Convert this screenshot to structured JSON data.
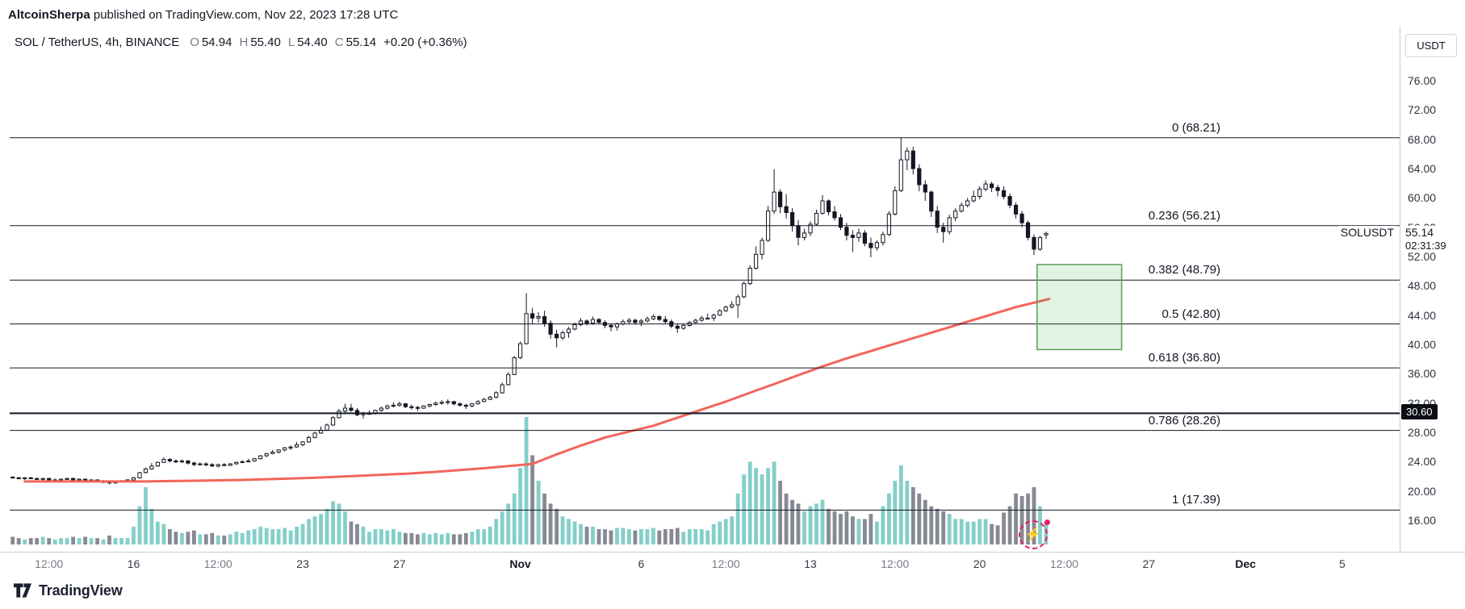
{
  "attribution": {
    "author": "AltcoinSherpa",
    "rest": " published on TradingView.com, Nov 22, 2023 17:28 UTC"
  },
  "legend": {
    "title": "SOL / TetherUS, 4h, BINANCE",
    "o_label": "O",
    "o": "54.94",
    "h_label": "H",
    "h": "55.40",
    "l_label": "L",
    "l": "54.40",
    "c_label": "C",
    "c": "55.14",
    "change": "+0.20 (+0.36%)"
  },
  "price_axis": {
    "currency": "USDT",
    "labels": [
      "76.00",
      "72.00",
      "68.00",
      "64.00",
      "60.00",
      "56.00",
      "52.00",
      "48.00",
      "44.00",
      "40.00",
      "36.00",
      "32.00",
      "28.00",
      "24.00",
      "20.00",
      "16.00"
    ],
    "symbol_label": "SOLUSDT",
    "last_price": "55.14",
    "countdown": "02:31:39"
  },
  "time_axis": {
    "labels": [
      {
        "text": "12:00",
        "i": 6,
        "style": "session"
      },
      {
        "text": "16",
        "i": 20,
        "style": ""
      },
      {
        "text": "12:00",
        "i": 34,
        "style": "session"
      },
      {
        "text": "23",
        "i": 48,
        "style": ""
      },
      {
        "text": "27",
        "i": 64,
        "style": ""
      },
      {
        "text": "Nov",
        "i": 84,
        "style": "month"
      },
      {
        "text": "6",
        "i": 104,
        "style": ""
      },
      {
        "text": "12:00",
        "i": 118,
        "style": "session"
      },
      {
        "text": "13",
        "i": 132,
        "style": ""
      },
      {
        "text": "12:00",
        "i": 146,
        "style": "session"
      },
      {
        "text": "20",
        "i": 160,
        "style": ""
      },
      {
        "text": "12:00",
        "i": 174,
        "style": "session"
      },
      {
        "text": "27",
        "i": 188,
        "style": ""
      },
      {
        "text": "Dec",
        "i": 204,
        "style": "month"
      },
      {
        "text": "5",
        "i": 220,
        "style": ""
      }
    ]
  },
  "footer": {
    "brand": "TradingView"
  },
  "icons": {
    "boost": "⚡"
  },
  "colors": {
    "up_candle": "#ffffff",
    "down_candle": "#131722",
    "wick": "#131722",
    "volume_up": "#84cfc9",
    "volume_down": "#878a93",
    "ema": "#f2655a",
    "level_line": "#131722",
    "box_fill": "rgba(76,175,80,0.16)",
    "box_border": "#58a05c",
    "accent_pink": "#e91e63"
  },
  "chart_data": {
    "type": "candlestick",
    "title": "SOL / TetherUS, 4h, BINANCE",
    "symbol": "SOLUSDT",
    "timeframe": "4h",
    "exchange": "BINANCE",
    "last_close": 55.14,
    "y_range": {
      "top_price": 76,
      "bottom_price": 16
    },
    "axis_bars": 230,
    "bars_per_day": 4,
    "volume_scale": "relative (0-100)",
    "fib_levels": [
      {
        "ratio": "0",
        "price": 68.21,
        "label": "0 (68.21)"
      },
      {
        "ratio": "0.236",
        "price": 56.21,
        "label": "0.236 (56.21)"
      },
      {
        "ratio": "0.382",
        "price": 48.79,
        "label": "0.382 (48.79)"
      },
      {
        "ratio": "0.5",
        "price": 42.8,
        "label": "0.5 (42.80)"
      },
      {
        "ratio": "0.618",
        "price": 36.8,
        "label": "0.618 (36.80)"
      },
      {
        "ratio": "0.786",
        "price": 28.26,
        "label": "0.786 (28.26)"
      },
      {
        "ratio": "1",
        "price": 17.39,
        "label": "1 (17.39)"
      }
    ],
    "horizontal_line": {
      "price": 30.6,
      "label": "30.60"
    },
    "target_box": {
      "price_top": 50.9,
      "price_bottom": 39.3,
      "bar_start": 169.5,
      "bar_end": 183.5
    },
    "ema": {
      "name": "moving average",
      "values": [
        21.3,
        21.3,
        21.3,
        21.3,
        21.3,
        21.3,
        21.35,
        21.4,
        21.45,
        21.5,
        21.6,
        21.7,
        21.8,
        21.95,
        22.1,
        22.25,
        22.4,
        22.6,
        22.85,
        23.1,
        23.4,
        23.7,
        25.0,
        26.2,
        27.3,
        28.1,
        28.9,
        30.0,
        31.1,
        32.2,
        33.4,
        34.6,
        35.8,
        37.0,
        38.1,
        39.1,
        40.1,
        41.1,
        42.1,
        43.1,
        44.1,
        45.1,
        45.9
      ],
      "end_value": 46.2
    },
    "candles": [
      [
        21.9,
        22.0,
        21.7,
        21.8,
        6
      ],
      [
        21.8,
        21.9,
        21.6,
        21.7,
        5
      ],
      [
        21.7,
        21.9,
        21.5,
        21.8,
        4
      ],
      [
        21.8,
        21.9,
        21.6,
        21.7,
        5
      ],
      [
        21.7,
        21.8,
        21.5,
        21.6,
        5
      ],
      [
        21.6,
        21.8,
        21.4,
        21.7,
        6
      ],
      [
        21.7,
        21.8,
        21.4,
        21.5,
        5
      ],
      [
        21.5,
        21.7,
        21.3,
        21.5,
        4
      ],
      [
        21.5,
        21.7,
        21.4,
        21.6,
        5
      ],
      [
        21.6,
        21.8,
        21.5,
        21.7,
        5
      ],
      [
        21.7,
        21.8,
        21.4,
        21.5,
        6
      ],
      [
        21.5,
        21.7,
        21.4,
        21.6,
        5
      ],
      [
        21.6,
        21.7,
        21.3,
        21.4,
        6
      ],
      [
        21.4,
        21.6,
        21.2,
        21.5,
        5
      ],
      [
        21.5,
        21.6,
        21.2,
        21.3,
        5
      ],
      [
        21.3,
        21.5,
        21.1,
        21.3,
        4
      ],
      [
        21.3,
        21.4,
        20.9,
        21.1,
        7
      ],
      [
        21.1,
        21.4,
        21.0,
        21.3,
        5
      ],
      [
        21.3,
        21.5,
        21.2,
        21.4,
        5
      ],
      [
        21.4,
        21.6,
        21.3,
        21.5,
        5
      ],
      [
        21.5,
        21.9,
        21.4,
        21.8,
        14
      ],
      [
        21.8,
        22.6,
        21.7,
        22.5,
        30
      ],
      [
        22.5,
        23.2,
        22.4,
        23.0,
        45
      ],
      [
        23.0,
        23.8,
        22.9,
        23.4,
        28
      ],
      [
        23.4,
        24.0,
        23.3,
        23.9,
        18
      ],
      [
        23.9,
        24.6,
        23.8,
        24.3,
        16
      ],
      [
        24.3,
        24.5,
        23.9,
        24.1,
        12
      ],
      [
        24.1,
        24.3,
        23.8,
        24.0,
        10
      ],
      [
        24.0,
        24.3,
        23.8,
        24.1,
        9
      ],
      [
        24.1,
        24.2,
        23.6,
        23.8,
        10
      ],
      [
        23.8,
        24.0,
        23.4,
        23.6,
        11
      ],
      [
        23.6,
        23.9,
        23.5,
        23.7,
        8
      ],
      [
        23.7,
        23.9,
        23.4,
        23.6,
        8
      ],
      [
        23.6,
        23.8,
        23.3,
        23.4,
        9
      ],
      [
        23.4,
        23.7,
        23.2,
        23.6,
        7
      ],
      [
        23.6,
        23.8,
        23.4,
        23.5,
        7
      ],
      [
        23.5,
        23.8,
        23.4,
        23.7,
        8
      ],
      [
        23.7,
        24.0,
        23.6,
        23.9,
        10
      ],
      [
        23.9,
        24.2,
        23.8,
        24.0,
        9
      ],
      [
        24.0,
        24.4,
        23.9,
        24.1,
        11
      ],
      [
        24.1,
        24.5,
        24.0,
        24.4,
        12
      ],
      [
        24.4,
        24.9,
        24.3,
        24.8,
        14
      ],
      [
        24.8,
        25.2,
        24.6,
        25.1,
        13
      ],
      [
        25.1,
        25.6,
        25.0,
        25.3,
        12
      ],
      [
        25.3,
        25.7,
        25.1,
        25.6,
        12
      ],
      [
        25.6,
        26.0,
        25.4,
        25.9,
        13
      ],
      [
        25.9,
        26.2,
        25.6,
        26.0,
        11
      ],
      [
        26.0,
        26.7,
        25.9,
        26.3,
        14
      ],
      [
        26.3,
        26.8,
        26.1,
        26.7,
        16
      ],
      [
        26.7,
        27.5,
        26.6,
        27.3,
        20
      ],
      [
        27.3,
        28.1,
        27.2,
        27.9,
        22
      ],
      [
        27.9,
        28.8,
        27.8,
        28.3,
        24
      ],
      [
        28.3,
        29.2,
        28.2,
        29.0,
        28
      ],
      [
        29.0,
        30.2,
        28.9,
        30.0,
        34
      ],
      [
        30.0,
        31.2,
        29.9,
        30.9,
        32
      ],
      [
        30.9,
        31.9,
        30.7,
        31.3,
        26
      ],
      [
        31.3,
        31.9,
        30.8,
        31.0,
        18
      ],
      [
        31.0,
        31.3,
        30.2,
        30.4,
        16
      ],
      [
        30.4,
        30.8,
        29.9,
        30.6,
        14
      ],
      [
        30.6,
        31.0,
        30.4,
        30.6,
        10
      ],
      [
        30.6,
        31.1,
        30.4,
        31.0,
        12
      ],
      [
        31.0,
        31.5,
        30.8,
        31.3,
        12
      ],
      [
        31.3,
        31.8,
        31.1,
        31.6,
        11
      ],
      [
        31.6,
        32.1,
        31.4,
        31.7,
        12
      ],
      [
        31.7,
        32.2,
        31.5,
        31.9,
        10
      ],
      [
        31.9,
        32.0,
        31.3,
        31.5,
        9
      ],
      [
        31.5,
        31.8,
        31.1,
        31.4,
        9
      ],
      [
        31.4,
        31.6,
        30.9,
        31.3,
        8
      ],
      [
        31.3,
        31.7,
        31.2,
        31.6,
        9
      ],
      [
        31.6,
        31.9,
        31.4,
        31.8,
        8
      ],
      [
        31.8,
        32.2,
        31.6,
        32.0,
        9
      ],
      [
        32.0,
        32.4,
        31.8,
        32.1,
        8
      ],
      [
        32.1,
        32.5,
        31.8,
        32.2,
        9
      ],
      [
        32.2,
        32.3,
        31.7,
        31.9,
        8
      ],
      [
        31.9,
        32.1,
        31.5,
        31.7,
        8
      ],
      [
        31.7,
        31.9,
        31.2,
        31.6,
        9
      ],
      [
        31.6,
        32.0,
        31.4,
        31.9,
        10
      ],
      [
        31.9,
        32.4,
        31.8,
        32.2,
        12
      ],
      [
        32.2,
        32.7,
        32.1,
        32.5,
        12
      ],
      [
        32.5,
        33.0,
        32.4,
        32.8,
        14
      ],
      [
        32.8,
        33.6,
        32.6,
        33.4,
        20
      ],
      [
        33.4,
        34.8,
        33.3,
        34.5,
        26
      ],
      [
        34.5,
        36.2,
        34.4,
        35.9,
        32
      ],
      [
        35.9,
        38.4,
        35.8,
        38.2,
        40
      ],
      [
        38.2,
        40.4,
        38.0,
        40.1,
        60
      ],
      [
        40.1,
        47.0,
        40.0,
        44.2,
        100
      ],
      [
        44.2,
        45.0,
        42.8,
        43.6,
        70
      ],
      [
        43.6,
        44.4,
        43.0,
        43.8,
        50
      ],
      [
        43.8,
        44.6,
        42.4,
        42.9,
        40
      ],
      [
        42.9,
        43.3,
        40.8,
        41.4,
        32
      ],
      [
        41.4,
        42.0,
        39.6,
        40.9,
        28
      ],
      [
        40.9,
        41.9,
        40.6,
        41.6,
        22
      ],
      [
        41.6,
        42.4,
        40.9,
        42.1,
        20
      ],
      [
        42.1,
        43.0,
        41.9,
        42.7,
        18
      ],
      [
        42.7,
        43.6,
        42.5,
        43.2,
        16
      ],
      [
        43.2,
        43.4,
        42.6,
        42.9,
        14
      ],
      [
        42.9,
        43.8,
        42.7,
        43.4,
        14
      ],
      [
        43.4,
        43.6,
        42.8,
        43.0,
        12
      ],
      [
        43.0,
        43.3,
        42.2,
        42.6,
        12
      ],
      [
        42.6,
        42.9,
        41.8,
        42.4,
        11
      ],
      [
        42.4,
        43.0,
        41.9,
        42.8,
        13
      ],
      [
        42.8,
        43.4,
        42.6,
        43.1,
        13
      ],
      [
        43.1,
        43.6,
        42.8,
        43.3,
        12
      ],
      [
        43.3,
        43.5,
        42.7,
        43.0,
        11
      ],
      [
        43.0,
        43.5,
        42.5,
        43.2,
        12
      ],
      [
        43.2,
        43.8,
        43.0,
        43.5,
        12
      ],
      [
        43.5,
        44.1,
        43.3,
        43.8,
        13
      ],
      [
        43.8,
        44.0,
        43.2,
        43.4,
        11
      ],
      [
        43.4,
        43.9,
        42.8,
        43.1,
        12
      ],
      [
        43.1,
        43.4,
        42.2,
        42.5,
        12
      ],
      [
        42.5,
        42.9,
        41.6,
        42.2,
        13
      ],
      [
        42.2,
        42.8,
        42.0,
        42.6,
        10
      ],
      [
        42.6,
        43.2,
        42.4,
        43.0,
        12
      ],
      [
        43.0,
        43.5,
        42.8,
        43.3,
        12
      ],
      [
        43.3,
        43.9,
        43.1,
        43.6,
        12
      ],
      [
        43.6,
        44.2,
        43.4,
        43.6,
        11
      ],
      [
        43.6,
        44.2,
        43.2,
        44.0,
        16
      ],
      [
        44.0,
        44.8,
        43.9,
        44.6,
        18
      ],
      [
        44.6,
        45.3,
        44.4,
        45.1,
        20
      ],
      [
        45.1,
        45.9,
        44.9,
        45.4,
        22
      ],
      [
        45.4,
        46.8,
        43.6,
        46.5,
        40
      ],
      [
        46.5,
        48.6,
        46.3,
        48.3,
        55
      ],
      [
        48.3,
        50.8,
        48.1,
        50.4,
        65
      ],
      [
        50.4,
        53.4,
        50.2,
        52.3,
        60
      ],
      [
        52.3,
        54.6,
        51.6,
        54.2,
        55
      ],
      [
        54.2,
        58.9,
        54.0,
        58.2,
        60
      ],
      [
        58.2,
        63.9,
        57.8,
        60.8,
        65
      ],
      [
        60.8,
        61.2,
        57.9,
        58.8,
        50
      ],
      [
        58.8,
        60.5,
        57.2,
        58.0,
        40
      ],
      [
        58.0,
        58.6,
        55.4,
        56.2,
        35
      ],
      [
        56.2,
        57.0,
        53.5,
        54.6,
        32
      ],
      [
        54.6,
        55.8,
        54.2,
        55.2,
        26
      ],
      [
        55.2,
        56.8,
        54.8,
        56.4,
        30
      ],
      [
        56.4,
        58.4,
        56.2,
        57.9,
        32
      ],
      [
        57.9,
        60.4,
        57.7,
        59.6,
        35
      ],
      [
        59.6,
        59.8,
        57.6,
        58.1,
        28
      ],
      [
        58.1,
        58.9,
        56.9,
        57.3,
        26
      ],
      [
        57.3,
        57.8,
        55.6,
        56.0,
        24
      ],
      [
        56.0,
        56.6,
        54.2,
        54.9,
        26
      ],
      [
        54.9,
        55.6,
        52.6,
        54.6,
        22
      ],
      [
        54.6,
        55.8,
        54.0,
        55.2,
        20
      ],
      [
        55.2,
        55.6,
        53.4,
        53.8,
        20
      ],
      [
        53.8,
        54.6,
        51.9,
        53.2,
        24
      ],
      [
        53.2,
        54.2,
        52.8,
        53.9,
        18
      ],
      [
        53.9,
        55.4,
        53.5,
        55.0,
        30
      ],
      [
        55.0,
        58.2,
        54.8,
        57.8,
        40
      ],
      [
        57.8,
        61.6,
        57.6,
        61.0,
        50
      ],
      [
        61.0,
        68.21,
        60.8,
        65.2,
        62
      ],
      [
        65.2,
        66.9,
        63.8,
        66.4,
        50
      ],
      [
        66.4,
        67.0,
        63.2,
        64.0,
        45
      ],
      [
        64.0,
        64.6,
        60.9,
        61.8,
        40
      ],
      [
        61.8,
        62.4,
        59.6,
        60.8,
        35
      ],
      [
        60.8,
        61.0,
        57.4,
        58.2,
        30
      ],
      [
        58.2,
        58.9,
        55.2,
        56.0,
        28
      ],
      [
        56.0,
        56.6,
        53.9,
        55.4,
        26
      ],
      [
        55.4,
        57.7,
        55.0,
        57.3,
        24
      ],
      [
        57.3,
        58.6,
        56.8,
        58.2,
        20
      ],
      [
        58.2,
        59.4,
        58.0,
        59.0,
        20
      ],
      [
        59.0,
        60.0,
        58.7,
        59.6,
        18
      ],
      [
        59.6,
        61.0,
        59.4,
        60.2,
        18
      ],
      [
        60.2,
        61.6,
        59.8,
        61.2,
        20
      ],
      [
        61.2,
        62.4,
        60.9,
        61.9,
        20
      ],
      [
        61.9,
        62.2,
        60.8,
        61.4,
        16
      ],
      [
        61.4,
        61.8,
        60.2,
        61.0,
        15
      ],
      [
        61.0,
        61.6,
        59.8,
        60.2,
        25
      ],
      [
        60.2,
        60.6,
        58.6,
        59.0,
        30
      ],
      [
        59.0,
        59.4,
        57.2,
        57.8,
        40
      ],
      [
        57.8,
        58.2,
        56.0,
        56.6,
        38
      ],
      [
        56.6,
        56.9,
        54.2,
        54.6,
        40
      ],
      [
        54.6,
        55.0,
        52.2,
        53.0,
        45
      ],
      [
        53.0,
        54.8,
        52.8,
        54.6,
        30
      ],
      [
        54.94,
        55.4,
        54.4,
        55.14,
        18
      ]
    ]
  }
}
